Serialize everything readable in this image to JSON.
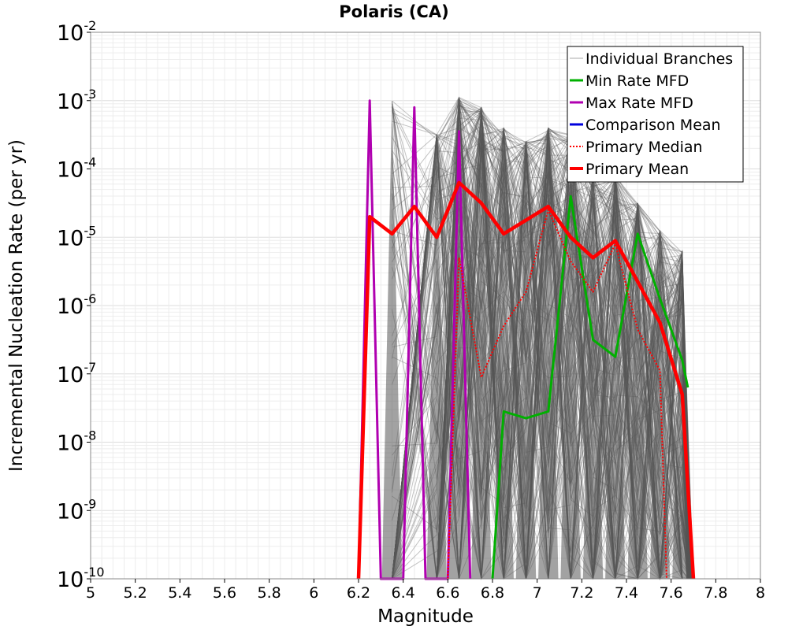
{
  "chart_data": {
    "type": "line",
    "title": "Polaris (CA)",
    "xlabel": "Magnitude",
    "ylabel": "Incremental Nucleation Rate (per yr)",
    "xlim": [
      5,
      8
    ],
    "ylim_log10": [
      -10,
      -2
    ],
    "y_scale": "log",
    "grid": true,
    "x_ticks": [
      "5",
      "5.2",
      "5.4",
      "5.6",
      "5.8",
      "6",
      "6.2",
      "6.4",
      "6.6",
      "6.8",
      "7",
      "7.2",
      "7.4",
      "7.6",
      "7.8",
      "8"
    ],
    "x_tick_values": [
      5,
      5.2,
      5.4,
      5.6,
      5.8,
      6,
      6.2,
      6.4,
      6.6,
      6.8,
      7,
      7.2,
      7.4,
      7.6,
      7.8,
      8
    ],
    "y_ticks": [
      {
        "base": "10",
        "exp": "-10",
        "value": -10
      },
      {
        "base": "10",
        "exp": "-9",
        "value": -9
      },
      {
        "base": "10",
        "exp": "-8",
        "value": -8
      },
      {
        "base": "10",
        "exp": "-7",
        "value": -7
      },
      {
        "base": "10",
        "exp": "-6",
        "value": -6
      },
      {
        "base": "10",
        "exp": "-5",
        "value": -5
      },
      {
        "base": "10",
        "exp": "-4",
        "value": -4
      },
      {
        "base": "10",
        "exp": "-3",
        "value": -3
      },
      {
        "base": "10",
        "exp": "-2",
        "value": -2
      }
    ],
    "series": [
      {
        "name": "Individual Branches",
        "color": "#555555",
        "style": "band",
        "note": "thousands of overlapping grey branch curves",
        "peaks": [
          {
            "x": 6.35,
            "log10y": -3.0
          },
          {
            "x": 6.55,
            "log10y": -3.5
          },
          {
            "x": 6.65,
            "log10y": -2.95
          },
          {
            "x": 6.75,
            "log10y": -3.1
          },
          {
            "x": 6.85,
            "log10y": -3.4
          },
          {
            "x": 6.95,
            "log10y": -3.6
          },
          {
            "x": 7.05,
            "log10y": -3.4
          },
          {
            "x": 7.15,
            "log10y": -3.5
          },
          {
            "x": 7.25,
            "log10y": -4.1
          },
          {
            "x": 7.35,
            "log10y": -4.1
          },
          {
            "x": 7.45,
            "log10y": -4.5
          },
          {
            "x": 7.55,
            "log10y": -4.9
          },
          {
            "x": 7.65,
            "log10y": -5.2
          }
        ]
      },
      {
        "name": "Min Rate MFD",
        "color": "#00b000",
        "style": "solid",
        "points": [
          [
            6.8,
            -10.0
          ],
          [
            6.85,
            -7.55
          ],
          [
            6.95,
            -7.65
          ],
          [
            7.05,
            -7.55
          ],
          [
            7.15,
            -4.4
          ],
          [
            7.25,
            -6.5
          ],
          [
            7.35,
            -6.75
          ],
          [
            7.45,
            -4.95
          ],
          [
            7.55,
            -5.9
          ],
          [
            7.65,
            -6.8
          ],
          [
            7.675,
            -7.2
          ]
        ]
      },
      {
        "name": "Max Rate MFD",
        "color": "#b000b0",
        "style": "solid",
        "points": [
          [
            6.2,
            -10.0
          ],
          [
            6.25,
            -3.0
          ],
          [
            6.3,
            -10.0
          ],
          [
            6.4,
            -10.0
          ],
          [
            6.45,
            -3.1
          ],
          [
            6.5,
            -10.0
          ],
          [
            6.6,
            -10.0
          ],
          [
            6.65,
            -3.45
          ],
          [
            6.7,
            -10.0
          ]
        ]
      },
      {
        "name": "Comparison Mean",
        "color": "#0000dd",
        "style": "solid",
        "points": []
      },
      {
        "name": "Primary Median",
        "color": "#ff0000",
        "style": "dotted",
        "points": [
          [
            6.6,
            -10.0
          ],
          [
            6.65,
            -5.3
          ],
          [
            6.75,
            -7.05
          ],
          [
            6.85,
            -6.3
          ],
          [
            6.95,
            -5.8
          ],
          [
            7.05,
            -4.6
          ],
          [
            7.15,
            -5.35
          ],
          [
            7.25,
            -5.8
          ],
          [
            7.35,
            -5.1
          ],
          [
            7.45,
            -6.35
          ],
          [
            7.55,
            -6.95
          ],
          [
            7.58,
            -10.0
          ]
        ]
      },
      {
        "name": "Primary Mean",
        "color": "#ff0000",
        "style": "thick",
        "points": [
          [
            6.2,
            -10.0
          ],
          [
            6.25,
            -4.7
          ],
          [
            6.35,
            -4.95
          ],
          [
            6.45,
            -4.55
          ],
          [
            6.55,
            -5.0
          ],
          [
            6.65,
            -4.2
          ],
          [
            6.75,
            -4.5
          ],
          [
            6.85,
            -4.95
          ],
          [
            6.95,
            -4.75
          ],
          [
            7.05,
            -4.55
          ],
          [
            7.15,
            -5.0
          ],
          [
            7.25,
            -5.3
          ],
          [
            7.35,
            -5.05
          ],
          [
            7.45,
            -5.65
          ],
          [
            7.55,
            -6.25
          ],
          [
            7.65,
            -7.3
          ],
          [
            7.7,
            -10.0
          ]
        ]
      }
    ],
    "legend": {
      "position": "top-right",
      "entries": [
        {
          "label": "Individual Branches",
          "color": "#aaaaaa",
          "style": "thin"
        },
        {
          "label": "Min Rate MFD",
          "color": "#00b000",
          "style": "solid"
        },
        {
          "label": "Max Rate MFD",
          "color": "#b000b0",
          "style": "solid"
        },
        {
          "label": "Comparison Mean",
          "color": "#0000dd",
          "style": "solid"
        },
        {
          "label": "Primary Median",
          "color": "#ff0000",
          "style": "dotted"
        },
        {
          "label": "Primary Mean",
          "color": "#ff0000",
          "style": "thick"
        }
      ]
    }
  }
}
